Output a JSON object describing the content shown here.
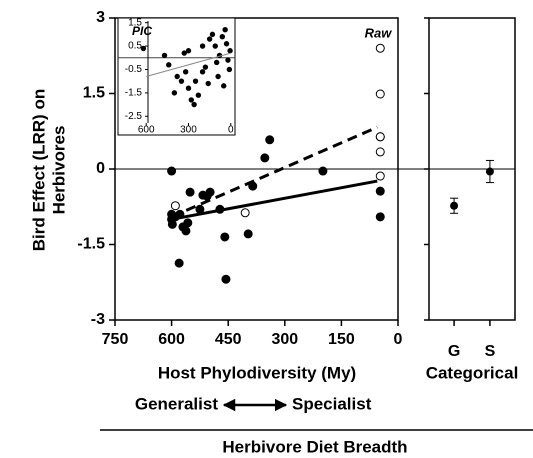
{
  "chart_data": [
    {
      "type": "scatter",
      "y_label": [
        "Bird Effect (LRR) on",
        "Herbivores"
      ],
      "x_label": "Host Phylodiversity (My)",
      "annotation": "Raw",
      "direction_left": "Generalist",
      "direction_right": "Specialist",
      "footer": "Herbivore Diet Breadth",
      "xlim": [
        750,
        0
      ],
      "xticks": [
        750,
        600,
        450,
        300,
        150,
        0
      ],
      "ylim": [
        -3,
        3
      ],
      "yticks": [
        3,
        1.5,
        0,
        -1.5,
        -3
      ],
      "refline": 0,
      "series": [
        {
          "marker": "filled",
          "color": "#000000",
          "x": [
            600,
            600,
            600,
            598,
            590,
            578,
            570,
            562,
            557,
            551,
            580,
            525,
            517,
            506,
            498,
            472,
            459,
            456,
            397,
            385,
            353,
            340,
            199,
            47,
            47,
            47
          ],
          "values": [
            -0.04,
            -0.9,
            -1.0,
            -1.1,
            -0.95,
            -0.9,
            -1.15,
            -1.23,
            -1.07,
            -0.46,
            -1.87,
            -0.8,
            -0.52,
            -0.54,
            -0.46,
            -0.8,
            -1.35,
            -2.19,
            -1.29,
            -0.34,
            0.22,
            0.58,
            -0.04,
            -0.44,
            -0.95,
            0.64
          ]
        },
        {
          "marker": "open",
          "color": "#000000",
          "x": [
            47,
            47,
            47,
            47,
            47,
            405,
            590
          ],
          "values": [
            2.4,
            1.49,
            0.64,
            0.34,
            -0.14,
            -0.87,
            -0.73
          ]
        },
        {
          "marker": "line",
          "style": "dashed",
          "color": "#000000",
          "x": [
            600,
            55
          ],
          "values": [
            -0.95,
            0.83
          ]
        },
        {
          "marker": "line",
          "style": "solid",
          "color": "#000000",
          "x": [
            600,
            55
          ],
          "values": [
            -1.0,
            -0.24
          ]
        }
      ]
    },
    {
      "type": "scatter",
      "annotation": "PIC",
      "xlim": [
        800,
        -30
      ],
      "xticks": [
        600,
        300,
        0
      ],
      "ylim": [
        -3.3,
        1.7
      ],
      "yticks": [
        1.5,
        0.5,
        -0.5,
        -1.5,
        -2.5
      ],
      "refline": 0,
      "series": [
        {
          "marker": "filled",
          "color": "#000000",
          "x": [
            620,
            470,
            440,
            330,
            300,
            320,
            350,
            380,
            400,
            300,
            280,
            260,
            250,
            200,
            180,
            160,
            150,
            130,
            110,
            100,
            80,
            60,
            40,
            30,
            20,
            10,
            5,
            50,
            200,
            230,
            90
          ],
          "values": [
            0.4,
            0.1,
            -0.3,
            0.2,
            0.3,
            -0.6,
            -1.0,
            -0.8,
            -1.5,
            -1.3,
            -1.8,
            -2.0,
            -1.0,
            -0.6,
            -0.4,
            -1.1,
            0.8,
            1.0,
            0.5,
            -0.2,
            0.1,
            0.9,
            1.2,
            0.6,
            -0.1,
            -0.5,
            0.3,
            -1.2,
            0.5,
            -1.6,
            -0.8
          ]
        },
        {
          "marker": "line",
          "style": "solid",
          "color": "#888888",
          "x": [
            600,
            0
          ],
          "values": [
            -0.8,
            0.2
          ]
        }
      ]
    },
    {
      "type": "errorbar",
      "x_label": "Categorical",
      "categories": [
        "G",
        "S"
      ],
      "values": [
        -0.73,
        -0.05
      ],
      "errors": [
        0.15,
        0.22
      ],
      "color": "#000000",
      "ylim": [
        -3,
        3
      ],
      "yticks": [
        3,
        1.5,
        0,
        -1.5,
        -3
      ],
      "refline": 0
    }
  ]
}
